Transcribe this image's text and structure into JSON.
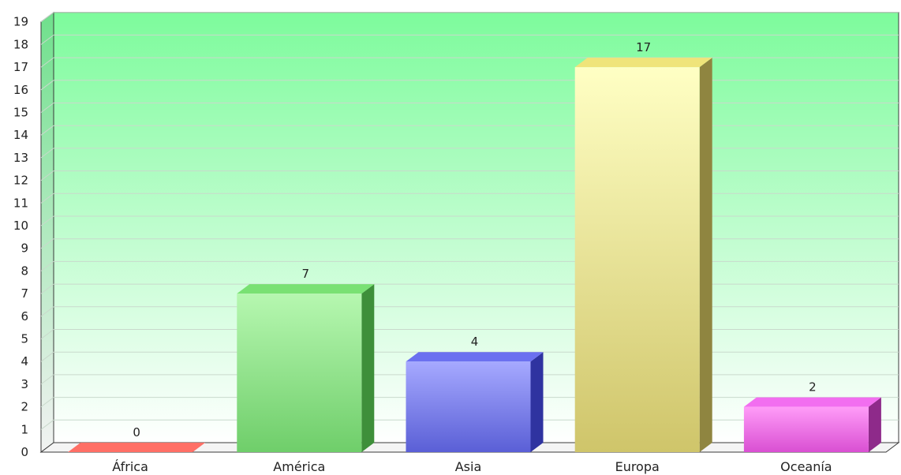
{
  "chart_data": {
    "type": "bar",
    "title": "",
    "xlabel": "",
    "ylabel": "",
    "ylim": [
      0,
      19
    ],
    "y_ticks": [
      0,
      1,
      2,
      3,
      4,
      5,
      6,
      7,
      8,
      9,
      10,
      11,
      12,
      13,
      14,
      15,
      16,
      17,
      18,
      19
    ],
    "grid": true,
    "style": "3d",
    "plot_background": [
      "#7dfb9c",
      "#ffffff"
    ],
    "categories": [
      "África",
      "América",
      "Asia",
      "Europa",
      "Oceanía"
    ],
    "values": [
      0,
      7,
      4,
      17,
      2
    ],
    "data_labels": [
      "0",
      "7",
      "4",
      "17",
      "2"
    ],
    "colors": [
      {
        "front_top": "#ff8a80",
        "front_bottom": "#f25c52",
        "side": "#c23b34",
        "top": "#ff6f66"
      },
      {
        "front_top": "#b6f7b0",
        "front_bottom": "#6fce6a",
        "side": "#3e8f3a",
        "top": "#79e173"
      },
      {
        "front_top": "#a6a9ff",
        "front_bottom": "#5a5fd6",
        "side": "#2f33a0",
        "top": "#6b70f0"
      },
      {
        "front_top": "#ffffc4",
        "front_bottom": "#cfc56a",
        "side": "#8f8540",
        "top": "#efe47a"
      },
      {
        "front_top": "#ff9cf8",
        "front_bottom": "#d94fd2",
        "side": "#8e2a8a",
        "top": "#f26ef0"
      }
    ]
  }
}
